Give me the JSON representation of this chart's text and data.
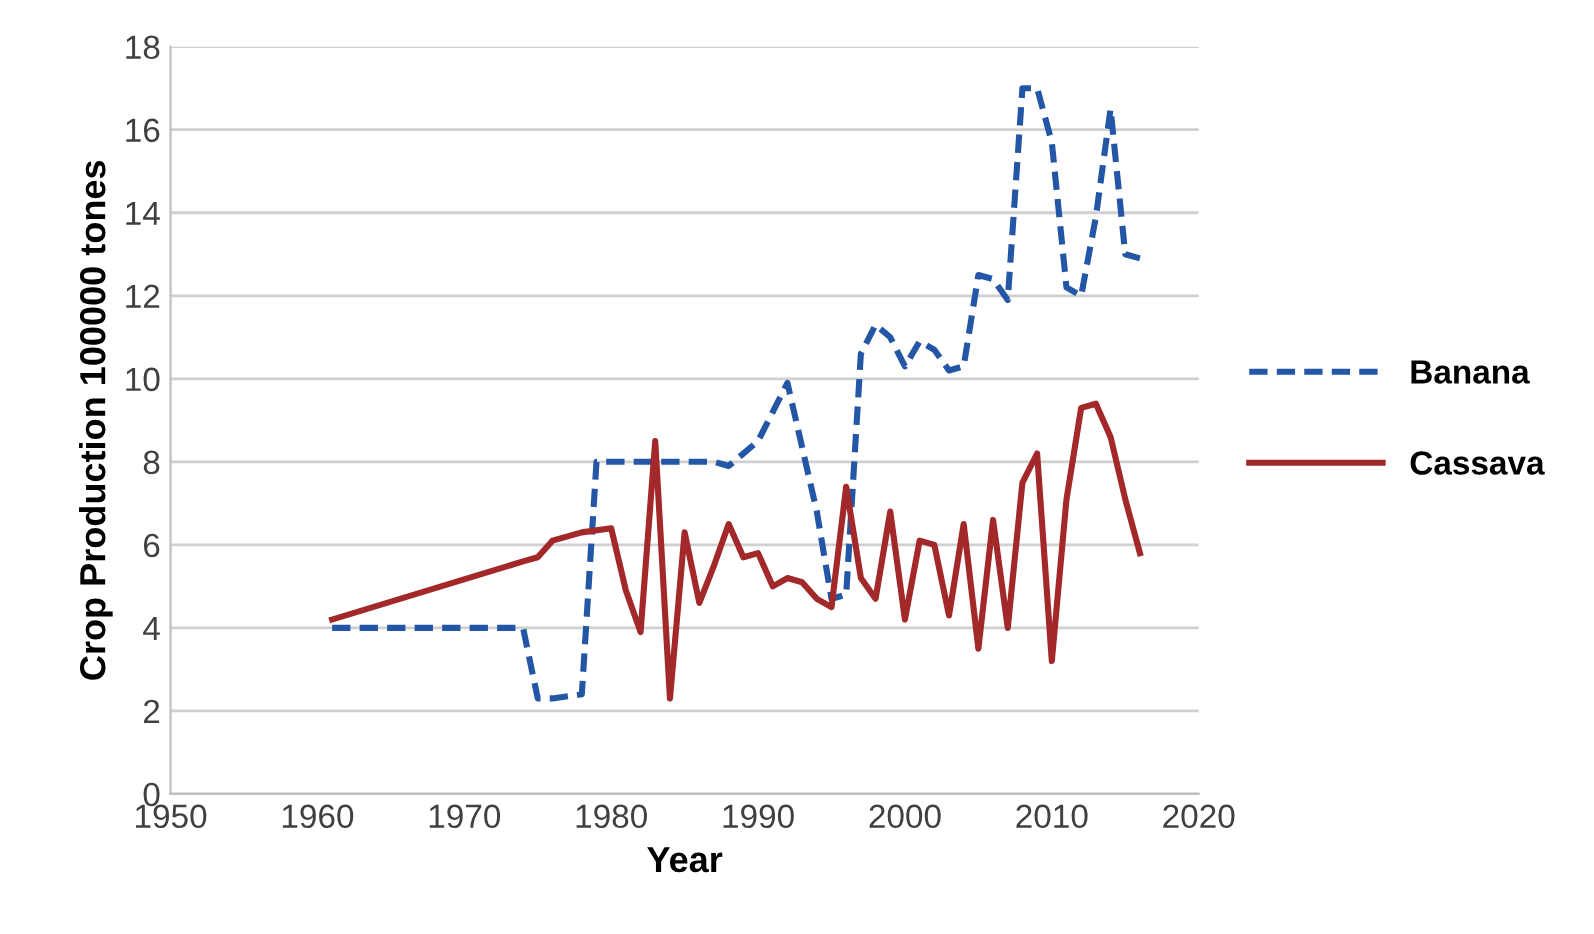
{
  "chart_data": {
    "type": "line",
    "xlabel": "Year",
    "ylabel": "Crop Production 100000 tones",
    "xlim": [
      1950,
      2020
    ],
    "xticks": [
      1950,
      1960,
      1970,
      1980,
      1990,
      2000,
      2010,
      2020
    ],
    "ylim": [
      0,
      18
    ],
    "yticks": [
      0,
      2,
      4,
      6,
      8,
      10,
      12,
      14,
      16,
      18
    ],
    "grid": "y",
    "legend": "right",
    "marker": "none",
    "series": [
      {
        "name": "Banana",
        "color": "#2456a6",
        "line_style": "dashed",
        "x": [
          1961,
          1974,
          1975,
          1976,
          1978,
          1979,
          1987,
          1988,
          1990,
          1992,
          1994,
          1995,
          1996,
          1997,
          1998,
          1999,
          2000,
          2001,
          2002,
          2003,
          2004,
          2005,
          2006,
          2007,
          2008,
          2009,
          2010,
          2011,
          2012,
          2013,
          2014,
          2015,
          2016
        ],
        "values": [
          4.0,
          4.0,
          2.3,
          2.3,
          2.4,
          8.0,
          8.0,
          7.9,
          8.5,
          9.9,
          6.8,
          4.7,
          4.8,
          10.6,
          11.3,
          11.0,
          10.3,
          10.9,
          10.7,
          10.2,
          10.3,
          12.5,
          12.4,
          11.9,
          17.0,
          17.0,
          15.7,
          12.2,
          12.0,
          13.9,
          16.5,
          13.0,
          12.9
        ]
      },
      {
        "name": "Cassava",
        "color": "#a3282a",
        "line_style": "solid",
        "x": [
          1961,
          1974,
          1975,
          1976,
          1978,
          1980,
          1981,
          1982,
          1983,
          1984,
          1985,
          1986,
          1987,
          1988,
          1989,
          1990,
          1991,
          1992,
          1993,
          1994,
          1995,
          1996,
          1997,
          1998,
          1999,
          2000,
          2001,
          2002,
          2003,
          2004,
          2005,
          2006,
          2007,
          2008,
          2009,
          2010,
          2011,
          2012,
          2013,
          2014,
          2015,
          2016
        ],
        "values": [
          4.2,
          5.6,
          5.7,
          6.1,
          6.3,
          6.4,
          4.9,
          3.9,
          8.5,
          2.3,
          6.3,
          4.6,
          5.5,
          6.5,
          5.7,
          5.8,
          5.0,
          5.2,
          5.1,
          4.7,
          4.5,
          7.4,
          5.2,
          4.7,
          6.8,
          4.2,
          6.1,
          6.0,
          4.3,
          6.5,
          3.5,
          6.6,
          4.0,
          7.5,
          8.2,
          3.2,
          7.1,
          9.3,
          9.4,
          8.6,
          7.1,
          5.8
        ]
      }
    ]
  }
}
